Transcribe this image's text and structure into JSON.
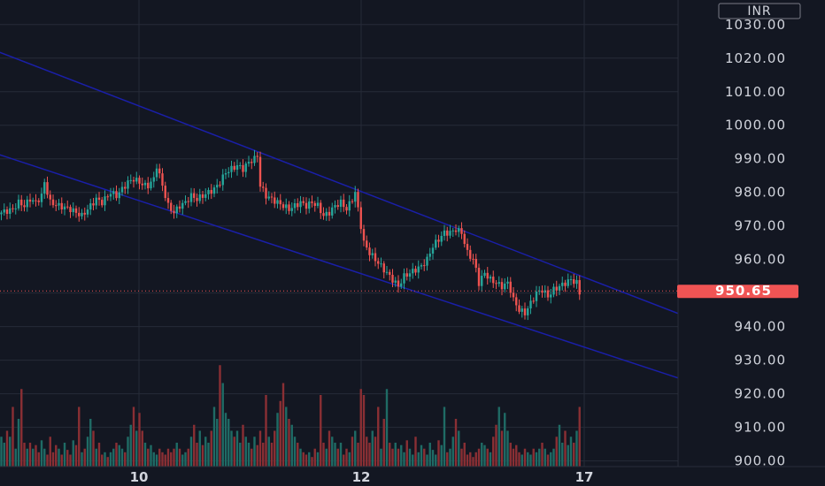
{
  "chart_data": {
    "type": "candlestick",
    "currency": "INR",
    "last_price": 950.65,
    "last_price_label": "950.65",
    "ylim": [
      897,
      1036
    ],
    "y_ticks": [
      900,
      910,
      920,
      930,
      940,
      950,
      960,
      970,
      980,
      990,
      1000,
      1010,
      1020,
      1030
    ],
    "y_tick_labels": [
      "900.00",
      "910.00",
      "920.00",
      "930.00",
      "940.00",
      "950.00",
      "960.00",
      "970.00",
      "980.00",
      "990.00",
      "1000.00",
      "1010.00",
      "1020.00",
      "1030.00"
    ],
    "x_labels": [
      "10",
      "12",
      "17"
    ],
    "grid": true,
    "close_path": [
      [
        0,
        974
      ],
      [
        4,
        975
      ],
      [
        6,
        977
      ],
      [
        8,
        976
      ],
      [
        10,
        978
      ],
      [
        12,
        977
      ],
      [
        14,
        979
      ],
      [
        15,
        983
      ],
      [
        17,
        977
      ],
      [
        20,
        976
      ],
      [
        24,
        975
      ],
      [
        26,
        974
      ],
      [
        28,
        973
      ],
      [
        30,
        975
      ],
      [
        31,
        976
      ],
      [
        33,
        978
      ],
      [
        35,
        977
      ],
      [
        38,
        980
      ],
      [
        40,
        979
      ],
      [
        42,
        981
      ],
      [
        44,
        983
      ],
      [
        46,
        984
      ],
      [
        48,
        983
      ],
      [
        50,
        982
      ],
      [
        51,
        982
      ],
      [
        53,
        984
      ],
      [
        54,
        988
      ],
      [
        56,
        982
      ],
      [
        58,
        976
      ],
      [
        60,
        974
      ],
      [
        62,
        976
      ],
      [
        64,
        977
      ],
      [
        66,
        979
      ],
      [
        68,
        978
      ],
      [
        70,
        979
      ],
      [
        72,
        980
      ],
      [
        74,
        981
      ],
      [
        76,
        983
      ],
      [
        78,
        986
      ],
      [
        80,
        987
      ],
      [
        82,
        988
      ],
      [
        84,
        987
      ],
      [
        86,
        989
      ],
      [
        88,
        990
      ],
      [
        89,
        991
      ],
      [
        90,
        982
      ],
      [
        92,
        979
      ],
      [
        94,
        978
      ],
      [
        96,
        977
      ],
      [
        98,
        976
      ],
      [
        100,
        975
      ],
      [
        102,
        976
      ],
      [
        104,
        977
      ],
      [
        106,
        976
      ],
      [
        108,
        977
      ],
      [
        110,
        976
      ],
      [
        112,
        973
      ],
      [
        114,
        974
      ],
      [
        116,
        976
      ],
      [
        118,
        977
      ],
      [
        120,
        975
      ],
      [
        122,
        978
      ],
      [
        123,
        980
      ],
      [
        124,
        975
      ],
      [
        126,
        965
      ],
      [
        128,
        962
      ],
      [
        130,
        960
      ],
      [
        132,
        958
      ],
      [
        134,
        956
      ],
      [
        136,
        954
      ],
      [
        138,
        952
      ],
      [
        140,
        955
      ],
      [
        142,
        956
      ],
      [
        144,
        957
      ],
      [
        146,
        958
      ],
      [
        148,
        960
      ],
      [
        150,
        964
      ],
      [
        152,
        966
      ],
      [
        154,
        968
      ],
      [
        156,
        968
      ],
      [
        158,
        969
      ],
      [
        160,
        968
      ],
      [
        161,
        965
      ],
      [
        162,
        962
      ],
      [
        164,
        960
      ],
      [
        165,
        957
      ],
      [
        166,
        953
      ],
      [
        168,
        956
      ],
      [
        170,
        954
      ],
      [
        172,
        953
      ],
      [
        174,
        952
      ],
      [
        176,
        953
      ],
      [
        177,
        951
      ],
      [
        178,
        948
      ],
      [
        180,
        945
      ],
      [
        182,
        944
      ],
      [
        184,
        947
      ],
      [
        186,
        950
      ],
      [
        188,
        951
      ],
      [
        190,
        949
      ],
      [
        192,
        951
      ],
      [
        194,
        952
      ],
      [
        196,
        953
      ],
      [
        198,
        954
      ],
      [
        200,
        953
      ],
      [
        201,
        950
      ]
    ],
    "volume": [
      0.25,
      0.2,
      0.3,
      0.25,
      0.5,
      0.15,
      0.4,
      0.65,
      0.2,
      0.15,
      0.2,
      0.15,
      0.18,
      0.12,
      0.22,
      0.15,
      0.1,
      0.25,
      0.12,
      0.18,
      0.15,
      0.1,
      0.2,
      0.14,
      0.1,
      0.22,
      0.18,
      0.5,
      0.12,
      0.15,
      0.25,
      0.4,
      0.3,
      0.15,
      0.2,
      0.1,
      0.12,
      0.08,
      0.12,
      0.15,
      0.2,
      0.18,
      0.15,
      0.12,
      0.25,
      0.35,
      0.5,
      0.3,
      0.45,
      0.3,
      0.2,
      0.15,
      0.18,
      0.12,
      0.1,
      0.15,
      0.12,
      0.1,
      0.15,
      0.12,
      0.15,
      0.2,
      0.15,
      0.1,
      0.12,
      0.15,
      0.25,
      0.35,
      0.2,
      0.3,
      0.18,
      0.25,
      0.2,
      0.3,
      0.5,
      0.4,
      0.85,
      0.7,
      0.45,
      0.4,
      0.3,
      0.25,
      0.3,
      0.2,
      0.35,
      0.25,
      0.2,
      0.15,
      0.25,
      0.18,
      0.3,
      0.2,
      0.6,
      0.25,
      0.2,
      0.3,
      0.45,
      0.55,
      0.7,
      0.5,
      0.4,
      0.35,
      0.25,
      0.2,
      0.15,
      0.12,
      0.1,
      0.12,
      0.08,
      0.15,
      0.12,
      0.6,
      0.2,
      0.15,
      0.3,
      0.25,
      0.2,
      0.15,
      0.2,
      0.1,
      0.15,
      0.12,
      0.25,
      0.3,
      0.2,
      0.65,
      0.6
    ],
    "channel_upper": [
      [
        -10,
        1025
      ],
      [
        240,
        942.5
      ]
    ],
    "channel_lower": [
      [
        -10,
        994
      ],
      [
        240,
        923.5
      ]
    ]
  },
  "colors": {
    "background": "#131722",
    "grid": "#262b38",
    "up": "#26a69a",
    "down": "#ef5350",
    "volume_up": "#1f6b65",
    "volume_down": "#8a2f34",
    "channel": "#1a1fa8",
    "price_tag": "#f05454",
    "axis_text": "#d1d4dc"
  }
}
